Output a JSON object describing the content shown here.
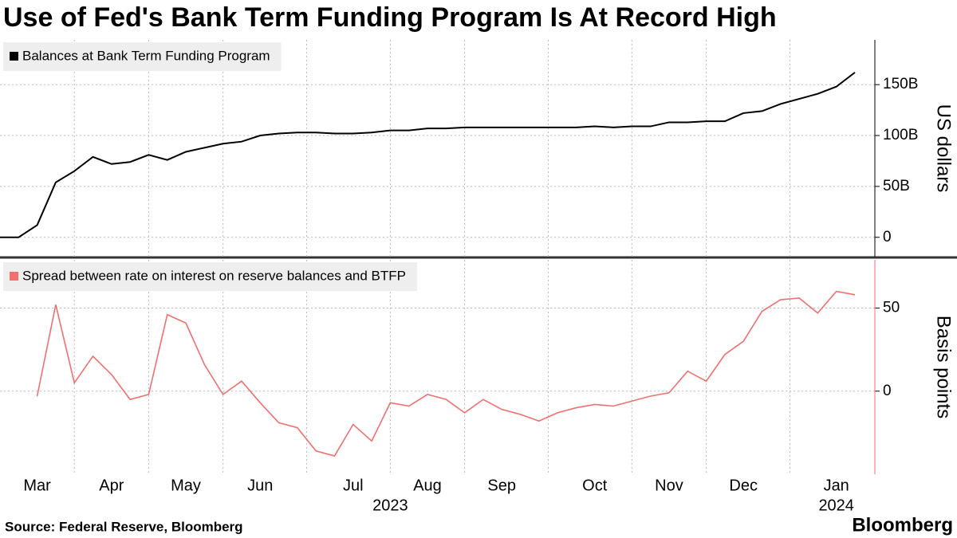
{
  "chart_data": {
    "type": "line",
    "title": "Use of Fed's Bank Term Funding Program Is At Record High",
    "source": "Source: Federal Reserve, Bloomberg",
    "brand": "Bloomberg",
    "categories": [
      null,
      null,
      "Mar",
      null,
      null,
      null,
      "Apr",
      null,
      null,
      null,
      "May",
      null,
      null,
      null,
      "Jun",
      null,
      null,
      null,
      null,
      "Jul",
      null,
      null,
      null,
      "Aug",
      null,
      null,
      null,
      "Sep",
      null,
      null,
      null,
      null,
      "Oct",
      null,
      null,
      null,
      "Nov",
      null,
      null,
      null,
      "Dec",
      null,
      null,
      null,
      null,
      "Jan",
      null
    ],
    "x_groups": [
      {
        "label": "2023",
        "from": "Mar",
        "to": "Dec"
      },
      {
        "label": "2024",
        "from": "Jan",
        "to": "Jan"
      }
    ],
    "grid": true,
    "panels": [
      {
        "y_label": "US dollars",
        "ylim": [
          -19,
          194
        ],
        "yticks": [
          0,
          {
            "value": 50,
            "label": "50B"
          },
          {
            "value": 100,
            "label": "100B"
          },
          {
            "value": 150,
            "label": "150B"
          }
        ],
        "series": [
          {
            "name": "Balances at Bank Term Funding Program",
            "color": "#000000",
            "values": [
              0,
              0,
              12,
              54,
              65,
              79,
              72,
              74,
              81,
              76,
              84,
              88,
              92,
              94,
              100,
              102,
              103,
              103,
              102,
              102,
              103,
              105,
              105,
              107,
              107,
              108,
              108,
              108,
              108,
              108,
              108,
              108,
              109,
              108,
              109,
              109,
              113,
              113,
              114,
              114,
              122,
              124,
              131,
              136,
              141,
              148,
              162
            ]
          }
        ]
      },
      {
        "y_label": "Basis points",
        "ylim": [
          -50,
          79
        ],
        "yticks": [
          0,
          50
        ],
        "series": [
          {
            "name": "Spread between rate on interest on reserve balances and BTFP",
            "color": "#f07070",
            "values": [
              null,
              null,
              -3,
              52,
              5,
              21,
              10,
              -5,
              -2,
              46,
              41,
              16,
              -2,
              6,
              -7,
              -19,
              -22,
              -36,
              -39,
              -20,
              -30,
              -7,
              -9,
              -2,
              -5,
              -13,
              -5,
              -11,
              -14,
              -18,
              -13,
              -10,
              -8,
              -9,
              -6,
              -3,
              -1,
              12,
              6,
              22,
              30,
              48,
              55,
              56,
              47,
              60,
              58
            ]
          }
        ]
      }
    ]
  }
}
